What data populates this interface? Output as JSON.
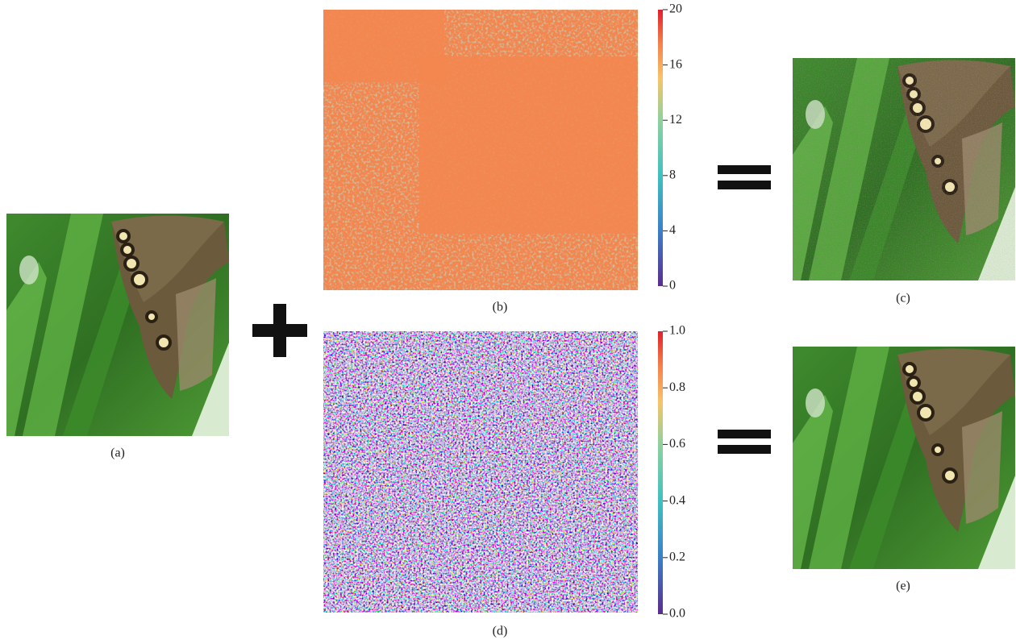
{
  "figure": {
    "captions": {
      "a": "(a)",
      "b": "(b)",
      "c": "(c)",
      "d": "(d)",
      "e": "(e)"
    },
    "colorbars": [
      {
        "lim": [
          0,
          20
        ],
        "ticks": [
          0,
          4,
          8,
          12,
          16,
          20
        ]
      },
      {
        "lim": [
          0,
          1
        ],
        "ticks": [
          {
            "value": 0,
            "label": "0.0"
          },
          {
            "value": 0.2,
            "label": "0.2"
          },
          {
            "value": 0.4,
            "label": "0.4"
          },
          {
            "value": 0.6,
            "label": "0.6"
          },
          {
            "value": 0.8,
            "label": "0.8"
          },
          {
            "value": 1,
            "label": "1.0"
          }
        ]
      }
    ]
  }
}
